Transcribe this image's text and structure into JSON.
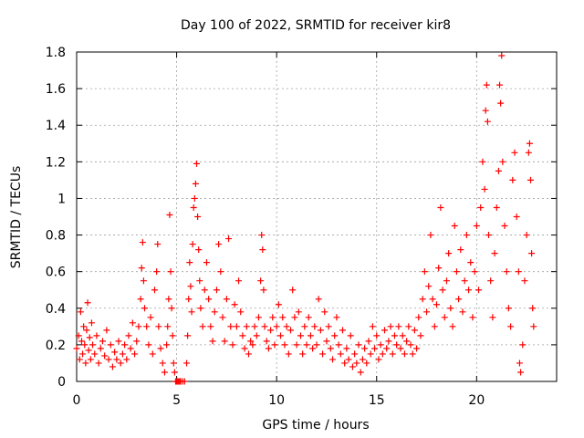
{
  "chart_data": {
    "type": "scatter",
    "title": "Day 100 of 2022, SRMTID for receiver kir8",
    "xlabel": "GPS time / hours",
    "ylabel": "SRMTID / TECUs",
    "xlim": [
      0,
      24
    ],
    "ylim": [
      0,
      1.8
    ],
    "xticks": [
      0,
      5,
      10,
      15,
      20
    ],
    "xtick_labels": [
      "0",
      "5",
      "10",
      "15",
      "20"
    ],
    "yticks": [
      0,
      0.2,
      0.4,
      0.6,
      0.8,
      1.0,
      1.2,
      1.4,
      1.6,
      1.8
    ],
    "ytick_labels": [
      "0",
      "0.2",
      "0.4",
      "0.6",
      "0.8",
      "1",
      "1.2",
      "1.4",
      "1.6",
      "1.8"
    ],
    "grid": true,
    "marker": "+",
    "color": "#ff0000",
    "series": [
      {
        "name": "SRMTID",
        "points": [
          [
            0.0,
            0.18
          ],
          [
            0.1,
            0.25
          ],
          [
            0.15,
            0.12
          ],
          [
            0.2,
            0.38
          ],
          [
            0.25,
            0.22
          ],
          [
            0.3,
            0.15
          ],
          [
            0.35,
            0.3
          ],
          [
            0.4,
            0.2
          ],
          [
            0.45,
            0.1
          ],
          [
            0.5,
            0.28
          ],
          [
            0.55,
            0.43
          ],
          [
            0.6,
            0.17
          ],
          [
            0.65,
            0.24
          ],
          [
            0.7,
            0.12
          ],
          [
            0.75,
            0.32
          ],
          [
            0.8,
            0.2
          ],
          [
            0.9,
            0.15
          ],
          [
            1.0,
            0.25
          ],
          [
            1.1,
            0.1
          ],
          [
            1.2,
            0.18
          ],
          [
            1.3,
            0.22
          ],
          [
            1.4,
            0.14
          ],
          [
            1.5,
            0.28
          ],
          [
            1.6,
            0.12
          ],
          [
            1.7,
            0.2
          ],
          [
            1.8,
            0.08
          ],
          [
            1.9,
            0.16
          ],
          [
            2.0,
            0.12
          ],
          [
            2.1,
            0.22
          ],
          [
            2.2,
            0.1
          ],
          [
            2.3,
            0.15
          ],
          [
            2.4,
            0.2
          ],
          [
            2.5,
            0.12
          ],
          [
            2.6,
            0.25
          ],
          [
            2.7,
            0.18
          ],
          [
            2.8,
            0.32
          ],
          [
            2.9,
            0.15
          ],
          [
            3.0,
            0.22
          ],
          [
            3.1,
            0.3
          ],
          [
            3.2,
            0.45
          ],
          [
            3.25,
            0.62
          ],
          [
            3.3,
            0.76
          ],
          [
            3.35,
            0.55
          ],
          [
            3.4,
            0.4
          ],
          [
            3.5,
            0.3
          ],
          [
            3.6,
            0.2
          ],
          [
            3.7,
            0.35
          ],
          [
            3.8,
            0.15
          ],
          [
            3.9,
            0.5
          ],
          [
            4.0,
            0.6
          ],
          [
            4.05,
            0.75
          ],
          [
            4.1,
            0.3
          ],
          [
            4.2,
            0.18
          ],
          [
            4.3,
            0.1
          ],
          [
            4.4,
            0.05
          ],
          [
            4.5,
            0.2
          ],
          [
            4.55,
            0.3
          ],
          [
            4.6,
            0.45
          ],
          [
            4.65,
            0.91
          ],
          [
            4.7,
            0.6
          ],
          [
            4.75,
            0.4
          ],
          [
            4.8,
            0.25
          ],
          [
            4.85,
            0.1
          ],
          [
            4.9,
            0.05
          ],
          [
            4.95,
            0.0
          ],
          [
            5.0,
            0.0
          ],
          [
            5.05,
            0.0
          ],
          [
            5.1,
            0.0
          ],
          [
            5.15,
            0.0
          ],
          [
            5.2,
            0.0
          ],
          [
            5.3,
            0.0
          ],
          [
            5.4,
            0.0
          ],
          [
            5.5,
            0.1
          ],
          [
            5.55,
            0.25
          ],
          [
            5.6,
            0.45
          ],
          [
            5.65,
            0.65
          ],
          [
            5.7,
            0.52
          ],
          [
            5.75,
            0.38
          ],
          [
            5.8,
            0.75
          ],
          [
            5.85,
            0.95
          ],
          [
            5.9,
            1.0
          ],
          [
            5.95,
            1.08
          ],
          [
            6.0,
            1.19
          ],
          [
            6.05,
            0.9
          ],
          [
            6.1,
            0.72
          ],
          [
            6.15,
            0.55
          ],
          [
            6.2,
            0.4
          ],
          [
            6.3,
            0.3
          ],
          [
            6.4,
            0.5
          ],
          [
            6.5,
            0.65
          ],
          [
            6.6,
            0.45
          ],
          [
            6.7,
            0.3
          ],
          [
            6.8,
            0.22
          ],
          [
            6.9,
            0.38
          ],
          [
            7.0,
            0.5
          ],
          [
            7.1,
            0.75
          ],
          [
            7.2,
            0.6
          ],
          [
            7.3,
            0.35
          ],
          [
            7.4,
            0.22
          ],
          [
            7.5,
            0.45
          ],
          [
            7.6,
            0.78
          ],
          [
            7.7,
            0.3
          ],
          [
            7.8,
            0.2
          ],
          [
            7.9,
            0.42
          ],
          [
            8.0,
            0.3
          ],
          [
            8.1,
            0.55
          ],
          [
            8.2,
            0.38
          ],
          [
            8.3,
            0.25
          ],
          [
            8.4,
            0.18
          ],
          [
            8.5,
            0.3
          ],
          [
            8.6,
            0.15
          ],
          [
            8.7,
            0.22
          ],
          [
            8.8,
            0.2
          ],
          [
            8.9,
            0.3
          ],
          [
            9.0,
            0.25
          ],
          [
            9.1,
            0.35
          ],
          [
            9.2,
            0.55
          ],
          [
            9.25,
            0.8
          ],
          [
            9.3,
            0.72
          ],
          [
            9.35,
            0.5
          ],
          [
            9.4,
            0.3
          ],
          [
            9.5,
            0.22
          ],
          [
            9.6,
            0.18
          ],
          [
            9.7,
            0.28
          ],
          [
            9.8,
            0.35
          ],
          [
            9.9,
            0.2
          ],
          [
            10.0,
            0.3
          ],
          [
            10.1,
            0.42
          ],
          [
            10.2,
            0.25
          ],
          [
            10.3,
            0.35
          ],
          [
            10.4,
            0.2
          ],
          [
            10.5,
            0.3
          ],
          [
            10.6,
            0.15
          ],
          [
            10.7,
            0.28
          ],
          [
            10.8,
            0.5
          ],
          [
            10.9,
            0.35
          ],
          [
            11.0,
            0.2
          ],
          [
            11.1,
            0.38
          ],
          [
            11.2,
            0.25
          ],
          [
            11.3,
            0.15
          ],
          [
            11.4,
            0.3
          ],
          [
            11.5,
            0.2
          ],
          [
            11.6,
            0.35
          ],
          [
            11.7,
            0.25
          ],
          [
            11.8,
            0.18
          ],
          [
            11.9,
            0.3
          ],
          [
            12.0,
            0.2
          ],
          [
            12.1,
            0.45
          ],
          [
            12.2,
            0.28
          ],
          [
            12.3,
            0.15
          ],
          [
            12.4,
            0.38
          ],
          [
            12.5,
            0.22
          ],
          [
            12.6,
            0.3
          ],
          [
            12.7,
            0.18
          ],
          [
            12.8,
            0.12
          ],
          [
            12.9,
            0.25
          ],
          [
            13.0,
            0.35
          ],
          [
            13.1,
            0.2
          ],
          [
            13.2,
            0.15
          ],
          [
            13.3,
            0.28
          ],
          [
            13.4,
            0.1
          ],
          [
            13.5,
            0.18
          ],
          [
            13.6,
            0.12
          ],
          [
            13.7,
            0.25
          ],
          [
            13.8,
            0.08
          ],
          [
            13.9,
            0.15
          ],
          [
            14.0,
            0.1
          ],
          [
            14.1,
            0.2
          ],
          [
            14.2,
            0.05
          ],
          [
            14.3,
            0.12
          ],
          [
            14.4,
            0.18
          ],
          [
            14.5,
            0.1
          ],
          [
            14.6,
            0.22
          ],
          [
            14.7,
            0.15
          ],
          [
            14.8,
            0.3
          ],
          [
            14.9,
            0.18
          ],
          [
            15.0,
            0.25
          ],
          [
            15.1,
            0.12
          ],
          [
            15.2,
            0.2
          ],
          [
            15.3,
            0.15
          ],
          [
            15.4,
            0.28
          ],
          [
            15.5,
            0.18
          ],
          [
            15.6,
            0.22
          ],
          [
            15.7,
            0.3
          ],
          [
            15.8,
            0.15
          ],
          [
            15.9,
            0.25
          ],
          [
            16.0,
            0.2
          ],
          [
            16.1,
            0.3
          ],
          [
            16.2,
            0.18
          ],
          [
            16.3,
            0.25
          ],
          [
            16.4,
            0.15
          ],
          [
            16.5,
            0.22
          ],
          [
            16.6,
            0.3
          ],
          [
            16.7,
            0.2
          ],
          [
            16.8,
            0.15
          ],
          [
            16.9,
            0.28
          ],
          [
            17.0,
            0.18
          ],
          [
            17.1,
            0.35
          ],
          [
            17.2,
            0.25
          ],
          [
            17.3,
            0.45
          ],
          [
            17.4,
            0.6
          ],
          [
            17.5,
            0.38
          ],
          [
            17.6,
            0.52
          ],
          [
            17.7,
            0.8
          ],
          [
            17.8,
            0.45
          ],
          [
            17.9,
            0.3
          ],
          [
            18.0,
            0.42
          ],
          [
            18.1,
            0.62
          ],
          [
            18.2,
            0.95
          ],
          [
            18.3,
            0.5
          ],
          [
            18.4,
            0.35
          ],
          [
            18.5,
            0.55
          ],
          [
            18.6,
            0.7
          ],
          [
            18.7,
            0.4
          ],
          [
            18.8,
            0.3
          ],
          [
            18.9,
            0.85
          ],
          [
            19.0,
            0.6
          ],
          [
            19.1,
            0.45
          ],
          [
            19.2,
            0.72
          ],
          [
            19.3,
            0.38
          ],
          [
            19.4,
            0.55
          ],
          [
            19.5,
            0.8
          ],
          [
            19.6,
            0.5
          ],
          [
            19.7,
            0.65
          ],
          [
            19.8,
            0.35
          ],
          [
            19.9,
            0.6
          ],
          [
            20.0,
            0.85
          ],
          [
            20.1,
            0.5
          ],
          [
            20.2,
            0.95
          ],
          [
            20.3,
            1.2
          ],
          [
            20.4,
            1.05
          ],
          [
            20.45,
            1.48
          ],
          [
            20.5,
            1.62
          ],
          [
            20.55,
            1.42
          ],
          [
            20.6,
            0.8
          ],
          [
            20.7,
            0.55
          ],
          [
            20.8,
            0.35
          ],
          [
            20.9,
            0.7
          ],
          [
            21.0,
            0.95
          ],
          [
            21.1,
            1.15
          ],
          [
            21.15,
            1.62
          ],
          [
            21.2,
            1.52
          ],
          [
            21.25,
            1.78
          ],
          [
            21.3,
            1.2
          ],
          [
            21.4,
            0.85
          ],
          [
            21.5,
            0.6
          ],
          [
            21.6,
            0.4
          ],
          [
            21.7,
            0.3
          ],
          [
            21.8,
            1.1
          ],
          [
            21.9,
            1.25
          ],
          [
            22.0,
            0.9
          ],
          [
            22.1,
            0.6
          ],
          [
            22.15,
            0.1
          ],
          [
            22.2,
            0.05
          ],
          [
            22.3,
            0.2
          ],
          [
            22.4,
            0.55
          ],
          [
            22.5,
            0.8
          ],
          [
            22.6,
            1.25
          ],
          [
            22.65,
            1.3
          ],
          [
            22.7,
            1.1
          ],
          [
            22.75,
            0.7
          ],
          [
            22.8,
            0.4
          ],
          [
            22.85,
            0.3
          ]
        ]
      }
    ]
  }
}
